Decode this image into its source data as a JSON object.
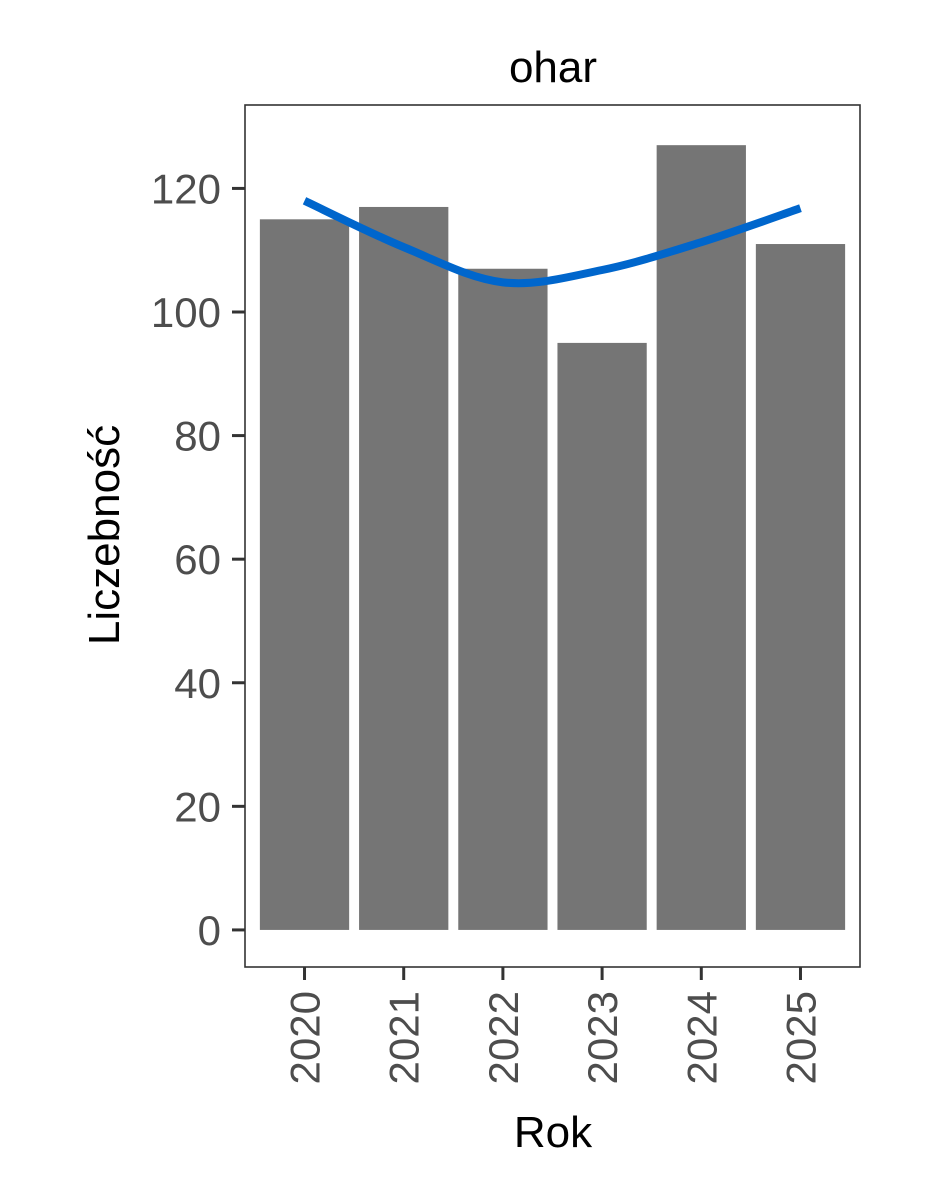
{
  "chart_data": {
    "type": "bar",
    "title": "ohar",
    "xlabel": "Rok",
    "ylabel": "Liczebność",
    "categories": [
      "2020",
      "2021",
      "2022",
      "2023",
      "2024",
      "2025"
    ],
    "values": [
      115,
      117,
      107,
      95,
      127,
      111
    ],
    "trend": {
      "type": "smooth",
      "values": [
        118,
        110.5,
        104.8,
        106.8,
        111.3,
        116.8
      ]
    },
    "ylim": [
      -6,
      133.5
    ],
    "yticks": [
      0,
      20,
      40,
      60,
      80,
      100,
      120
    ],
    "ytick_labels": [
      "0",
      "20",
      "40",
      "60",
      "80",
      "100",
      "120"
    ],
    "grid": false,
    "legend": "none",
    "colors": {
      "bar": "#757575",
      "trend": "#0066cc",
      "panel_border": "#333333",
      "tick_text": "#4d4d4d"
    }
  }
}
